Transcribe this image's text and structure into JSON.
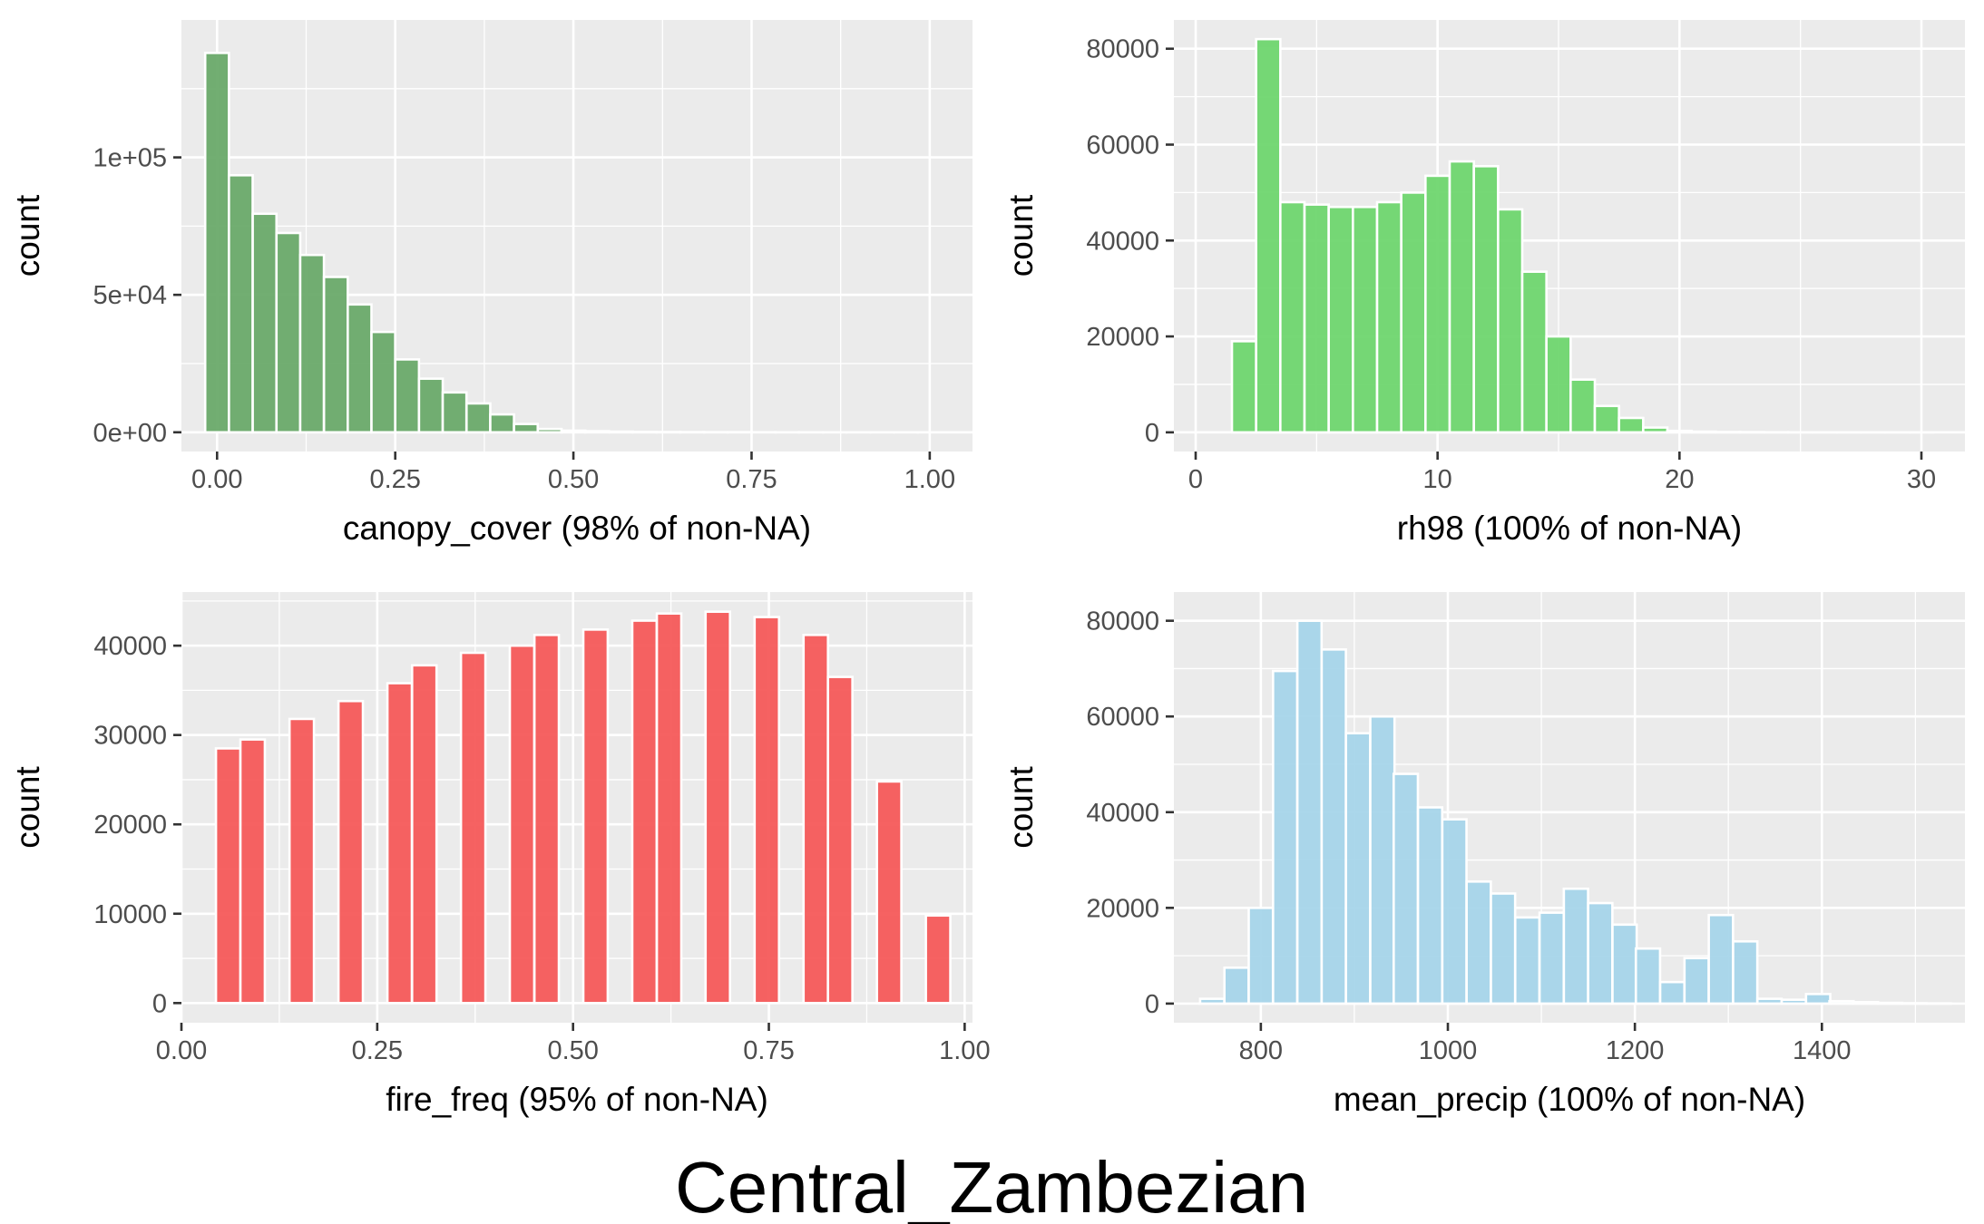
{
  "figure_title": "Central_Zambezian",
  "chart_data": [
    {
      "type": "bar",
      "xlabel": "canopy_cover (98% of non-NA)",
      "ylabel": "count",
      "color": "#6aaa6a",
      "xlim": [
        -0.05,
        1.06
      ],
      "ylim": [
        -7000,
        150000
      ],
      "x_ticks": [
        0,
        0.25,
        0.5,
        0.75,
        1.0
      ],
      "x_tick_labels": [
        "0.00",
        "0.25",
        "0.50",
        "0.75",
        "1.00"
      ],
      "y_ticks": [
        0,
        50000,
        100000
      ],
      "y_tick_labels": [
        "0e+00",
        "5e+04",
        "1e+05"
      ],
      "bin_width": 0.0333,
      "centers": [
        0.0,
        0.0333,
        0.0667,
        0.1,
        0.1333,
        0.1667,
        0.2,
        0.2333,
        0.2667,
        0.3,
        0.3333,
        0.3667,
        0.4,
        0.4333,
        0.4667,
        0.5,
        0.5333,
        0.5667,
        0.6,
        0.6333,
        0.6667,
        0.7,
        0.7333,
        0.7667,
        0.8,
        0.8333,
        0.8667,
        0.9,
        0.9333,
        0.9667,
        1.0
      ],
      "values": [
        138000,
        93500,
        79500,
        72500,
        64500,
        56500,
        46500,
        36500,
        26500,
        19500,
        14500,
        10500,
        6500,
        3000,
        1200,
        600,
        400,
        250,
        150,
        100,
        80,
        60,
        40,
        30,
        20,
        15,
        10,
        8,
        5,
        3,
        2
      ]
    },
    {
      "type": "bar",
      "xlabel": "rh98 (100% of non-NA)",
      "ylabel": "count",
      "color": "#6fd66f",
      "xlim": [
        -0.9,
        31.8
      ],
      "ylim": [
        -4000,
        86000
      ],
      "x_ticks": [
        0,
        10,
        20,
        30
      ],
      "x_tick_labels": [
        "0",
        "10",
        "20",
        "30"
      ],
      "y_ticks": [
        0,
        20000,
        40000,
        60000,
        80000
      ],
      "y_tick_labels": [
        "0",
        "20000",
        "40000",
        "60000",
        "80000"
      ],
      "bin_width": 1.0,
      "centers": [
        0,
        1,
        2,
        3,
        4,
        5,
        6,
        7,
        8,
        9,
        10,
        11,
        12,
        13,
        14,
        15,
        16,
        17,
        18,
        19,
        20,
        21,
        22,
        23,
        24,
        25,
        26,
        27,
        28,
        29,
        30
      ],
      "values": [
        0,
        0,
        19000,
        82000,
        48000,
        47500,
        47000,
        47000,
        48000,
        50000,
        53500,
        56500,
        55500,
        46500,
        33500,
        20000,
        11000,
        5500,
        3000,
        1000,
        300,
        150,
        80,
        50,
        30,
        20,
        10,
        5,
        3,
        2,
        1
      ]
    },
    {
      "type": "bar",
      "xlabel": "fire_freq (95% of non-NA)",
      "ylabel": "count",
      "color": "#f55a5a",
      "xlim": [
        0.0,
        1.01
      ],
      "ylim": [
        -2200,
        46000
      ],
      "x_ticks": [
        0,
        0.25,
        0.5,
        0.75,
        1.0
      ],
      "x_tick_labels": [
        "0.00",
        "0.25",
        "0.50",
        "0.75",
        "1.00"
      ],
      "y_ticks": [
        0,
        10000,
        20000,
        30000,
        40000
      ],
      "y_tick_labels": [
        "0",
        "10000",
        "20000",
        "30000",
        "40000"
      ],
      "bin_width": 0.0312,
      "centers": [
        0.0597,
        0.0909,
        0.1536,
        0.2161,
        0.2786,
        0.3101,
        0.3725,
        0.4349,
        0.4663,
        0.5287,
        0.5912,
        0.6226,
        0.6848,
        0.7474,
        0.8099,
        0.8411,
        0.9036,
        0.9661
      ],
      "values": [
        28500,
        29500,
        31800,
        33800,
        35800,
        37800,
        39200,
        40000,
        41200,
        41800,
        42800,
        43600,
        43800,
        43200,
        41200,
        36500,
        24800,
        9800
      ]
    },
    {
      "type": "bar",
      "xlabel": "mean_precip (100% of non-NA)",
      "ylabel": "count",
      "color": "#a6d5ea",
      "xlim": [
        707,
        1553
      ],
      "ylim": [
        -4000,
        86000
      ],
      "x_ticks": [
        800,
        1000,
        1200,
        1400
      ],
      "x_tick_labels": [
        "800",
        "1000",
        "1200",
        "1400"
      ],
      "y_ticks": [
        0,
        20000,
        40000,
        60000,
        80000
      ],
      "y_tick_labels": [
        "0",
        "20000",
        "40000",
        "60000",
        "80000"
      ],
      "bin_width": 25.9,
      "centers": [
        748,
        774,
        800,
        826,
        852,
        878,
        904,
        930,
        955,
        981,
        1007,
        1033,
        1059,
        1085,
        1111,
        1137,
        1163,
        1189,
        1214,
        1240,
        1266,
        1292,
        1318,
        1344,
        1370,
        1396,
        1421,
        1447,
        1473,
        1499,
        1525
      ],
      "values": [
        1000,
        7500,
        20000,
        69500,
        80000,
        74000,
        56500,
        60000,
        48000,
        41000,
        38500,
        25500,
        23000,
        18000,
        19000,
        24000,
        21000,
        16500,
        11500,
        4500,
        9500,
        18500,
        13000,
        1000,
        800,
        2000,
        500,
        300,
        150,
        80,
        40
      ]
    }
  ]
}
